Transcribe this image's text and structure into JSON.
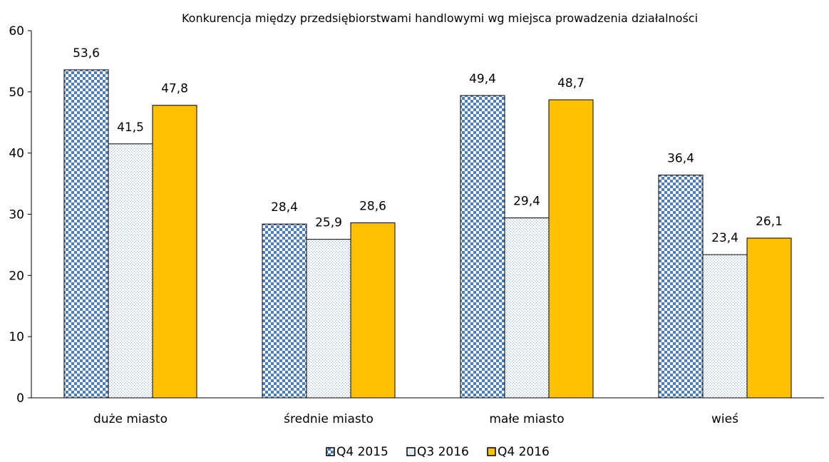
{
  "chart_data": {
    "type": "bar",
    "title": "Konkurencja między przedsiębiorstwami handlowymi wg miejsca prowadzenia działalności",
    "xlabel": "",
    "ylabel": "",
    "categories": [
      "duże miasto",
      "średnie miasto",
      "małe miasto",
      "wieś"
    ],
    "series": [
      {
        "name": "Q4 2015",
        "values": [
          53.6,
          28.4,
          49.4,
          36.4
        ],
        "labels": [
          "53,6",
          "28,4",
          "49,4",
          "36,4"
        ],
        "fill": "checker",
        "color": "#4A7EBB"
      },
      {
        "name": "Q3 2016",
        "values": [
          41.5,
          25.9,
          29.4,
          23.4
        ],
        "labels": [
          "41,5",
          "25,9",
          "29,4",
          "23,4"
        ],
        "fill": "dotted",
        "color": "#8FB4DE"
      },
      {
        "name": "Q4 2016",
        "values": [
          47.8,
          28.6,
          48.7,
          26.1
        ],
        "labels": [
          "47,8",
          "28,6",
          "48,7",
          "26,1"
        ],
        "fill": "solid",
        "color": "#FFC000"
      }
    ],
    "ylim": [
      0,
      60
    ],
    "yticks": [
      0,
      10,
      20,
      30,
      40,
      50,
      60
    ],
    "grid": false,
    "legend_position": "bottom"
  }
}
